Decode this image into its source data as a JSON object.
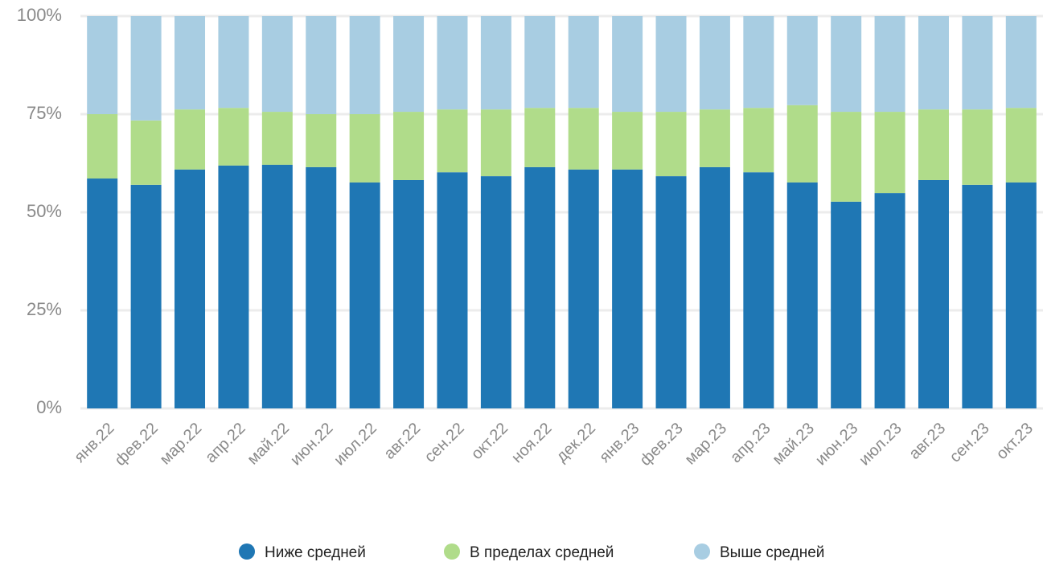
{
  "chart_data": {
    "type": "stacked_bar",
    "categories": [
      "янв.22",
      "фев.22",
      "мар.22",
      "апр.22",
      "май.22",
      "июн.22",
      "июл.22",
      "авг.22",
      "сен.22",
      "окт.22",
      "ноя.22",
      "дек.22",
      "янв.23",
      "фев.23",
      "мар.23",
      "апр.23",
      "май.23",
      "июн.23",
      "июл.23",
      "авг.23",
      "сен.23",
      "окт.23"
    ],
    "series": [
      {
        "name": "Ниже средней",
        "color": "#1f77b4",
        "values": [
          58.6,
          57.0,
          60.9,
          61.9,
          62.1,
          61.5,
          57.6,
          58.2,
          60.2,
          59.2,
          61.5,
          60.9,
          60.9,
          59.2,
          61.5,
          60.2,
          57.6,
          52.7,
          54.9,
          58.2,
          57.0,
          57.6
        ]
      },
      {
        "name": "В пределах средней",
        "color": "#b0dc8a",
        "values": [
          16.4,
          16.4,
          15.3,
          14.7,
          13.5,
          13.5,
          17.4,
          17.4,
          16.0,
          17.0,
          15.1,
          15.7,
          14.7,
          16.4,
          14.7,
          16.4,
          19.7,
          22.9,
          20.7,
          18.0,
          19.2,
          19.0
        ]
      },
      {
        "name": "Выше средней",
        "color": "#a8cde2",
        "values": [
          25.0,
          26.6,
          23.8,
          23.4,
          24.4,
          25.0,
          25.0,
          24.4,
          23.8,
          23.8,
          23.4,
          23.4,
          24.4,
          24.4,
          23.8,
          23.4,
          22.7,
          24.4,
          24.4,
          23.8,
          23.8,
          23.4
        ]
      }
    ],
    "ylim": [
      0,
      100
    ],
    "yticks": [
      {
        "value": 0,
        "label": "0%"
      },
      {
        "value": 25,
        "label": "25%"
      },
      {
        "value": 50,
        "label": "50%"
      },
      {
        "value": 75,
        "label": "75%"
      },
      {
        "value": 100,
        "label": "100%"
      }
    ],
    "grid": true,
    "legend": "bottom"
  }
}
